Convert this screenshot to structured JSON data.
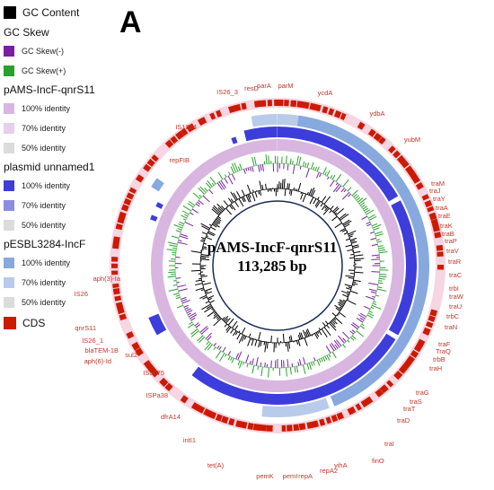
{
  "panel_label": "A",
  "plasmid": {
    "name": "pAMS-IncF-qnrS11",
    "size": "113,285 bp"
  },
  "legend": {
    "gc_content": "GC Content",
    "gc_skew": "GC Skew",
    "gc_skew_neg": "GC Skew(-)",
    "gc_skew_pos": "GC Skew(+)",
    "cds": "CDS",
    "rings": [
      {
        "name": "pAMS-IncF-qnrS11",
        "levels": [
          "100% identity",
          "70% identity",
          "50% identity"
        ]
      },
      {
        "name": "plasmid unnamed1",
        "levels": [
          "100% identity",
          "70% identity",
          "50% identity"
        ]
      },
      {
        "name": "pESBL3284-IncF",
        "levels": [
          "100% identity",
          "70% identity",
          "50% identity"
        ]
      }
    ]
  },
  "colors": {
    "gc_content": "#000000",
    "gc_skew_neg": "#7a1fa2",
    "gc_skew_pos": "#2ca02c",
    "ring1_100": "#d8b6e0",
    "ring1_70": "#e6cfeb",
    "ring1_50": "#dcdcdc",
    "ring2_100": "#3d3ddb",
    "ring2_70": "#8c8ce3",
    "ring2_50": "#dcdcdc",
    "ring3_100": "#87a9de",
    "ring3_70": "#b9cbea",
    "ring3_50": "#dcdcdc",
    "cds": "#cc1a00",
    "gene_label": "#c0392b"
  },
  "genes": [
    "IS26_3",
    "resD",
    "parA",
    "parM",
    "ycdA",
    "ydbA",
    "yubM",
    "IS1294",
    "repFIB",
    "traM",
    "traJ",
    "traY",
    "traA",
    "traE",
    "traK",
    "traB",
    "traP",
    "traV",
    "traR",
    "traC",
    "trbI",
    "traW",
    "traU",
    "trbC",
    "traN",
    "traF",
    "TraQ",
    "trbB",
    "traH",
    "traG",
    "traS",
    "traT",
    "traD",
    "traI",
    "finO",
    "yihA",
    "repA2",
    "repA",
    "pemI",
    "pemK",
    "tet(A)",
    "intI1",
    "dfrA14",
    "ISPa38",
    "IS5075",
    "sul2",
    "aph(6)-Id",
    "blaTEM-1B",
    "IS26_1",
    "qnrS11",
    "IS26",
    "aph(3)-Ia"
  ]
}
